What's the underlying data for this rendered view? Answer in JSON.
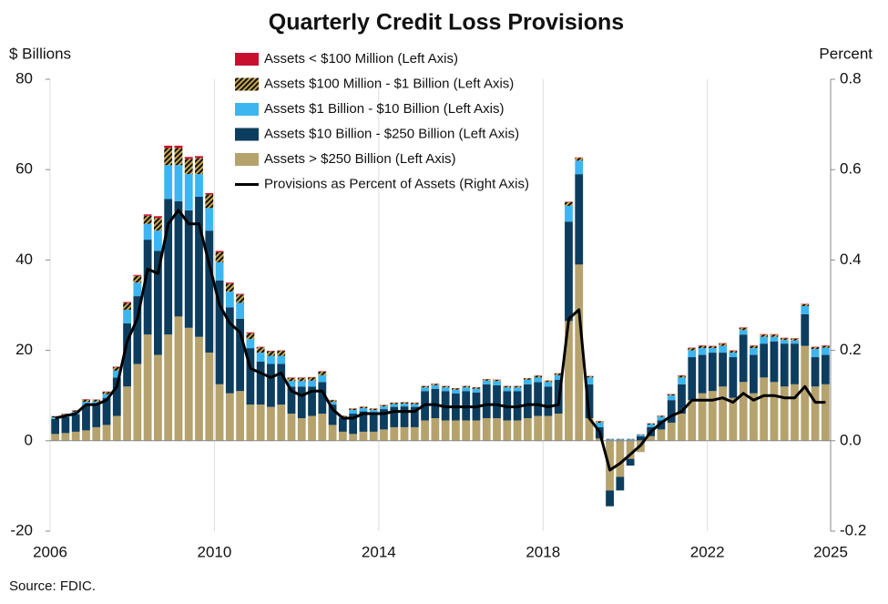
{
  "chart_data": {
    "type": "stacked-bar-line",
    "title": "Quarterly Credit Loss Provisions",
    "y_label": "$ Billions",
    "y2_label": "Percent",
    "source": "Source: FDIC.",
    "xlim": [
      2006,
      2025
    ],
    "xticks": [
      2006,
      2010,
      2014,
      2018,
      2022,
      2025
    ],
    "ylim": [
      -20,
      80
    ],
    "yticks": [
      -20,
      0,
      20,
      40,
      60,
      80
    ],
    "y2lim": [
      -0.2,
      0.8
    ],
    "y2ticks": [
      -0.2,
      {
        "value": 0,
        "label": "0.0"
      },
      0.2,
      0.4,
      0.6,
      0.8
    ],
    "grid": true,
    "x": [
      2006,
      2006.25,
      2006.5,
      2006.75,
      2007,
      2007.25,
      2007.5,
      2007.75,
      2008,
      2008.25,
      2008.5,
      2008.75,
      2009,
      2009.25,
      2009.5,
      2009.75,
      2010,
      2010.25,
      2010.5,
      2010.75,
      2011,
      2011.25,
      2011.5,
      2011.75,
      2012,
      2012.25,
      2012.5,
      2012.75,
      2013,
      2013.25,
      2013.5,
      2013.75,
      2014,
      2014.25,
      2014.5,
      2014.75,
      2015,
      2015.25,
      2015.5,
      2015.75,
      2016,
      2016.25,
      2016.5,
      2016.75,
      2017,
      2017.25,
      2017.5,
      2017.75,
      2018,
      2018.25,
      2018.5,
      2018.75,
      2019,
      2019.25,
      2019.5,
      2019.75,
      2020,
      2020.25,
      2020.5,
      2020.75,
      2021,
      2021.25,
      2021.5,
      2021.75,
      2022,
      2022.25,
      2022.5,
      2022.75,
      2023,
      2023.25,
      2023.5,
      2023.75,
      2024,
      2024.25,
      2024.5,
      2024.75
    ],
    "series": [
      {
        "name": "Assets < $100 Million (Left Axis)",
        "color": "#c8102e",
        "fill": "solid",
        "values": [
          0.05,
          0.05,
          0.05,
          0.1,
          0.05,
          0.1,
          0.1,
          0.2,
          0.2,
          0.3,
          0.4,
          0.5,
          0.5,
          0.4,
          0.4,
          0.3,
          0.3,
          0.2,
          0.2,
          0.2,
          0.1,
          0.1,
          0.1,
          0.1,
          0.1,
          0.1,
          0.1,
          0.05,
          0.05,
          0.05,
          0.05,
          0.05,
          0.05,
          0.05,
          0.05,
          0.05,
          0.05,
          0.05,
          0.05,
          0.05,
          0.05,
          0.05,
          0.05,
          0.05,
          0.05,
          0.05,
          0.05,
          0.05,
          0.05,
          0.05,
          0.1,
          0.1,
          0.05,
          0.05,
          0.02,
          0.02,
          0.02,
          0.02,
          0.05,
          0.05,
          0.05,
          0.1,
          0.1,
          0.1,
          0.1,
          0.1,
          0.1,
          0.1,
          0.1,
          0.1,
          0.1,
          0.1,
          0.1,
          0.1,
          0.1,
          0.1
        ]
      },
      {
        "name": "Assets $100 Million - $1 Billion (Left Axis)",
        "color": "#c9a84c",
        "fill": "hatch",
        "values": [
          0.2,
          0.25,
          0.3,
          0.5,
          0.4,
          0.5,
          0.8,
          1.5,
          1.5,
          1.8,
          2.8,
          3.8,
          3.8,
          3.4,
          3.6,
          3,
          2.2,
          1.8,
          1.8,
          1.3,
          1.2,
          1,
          1.1,
          0.7,
          0.7,
          0.7,
          0.8,
          0.4,
          0.2,
          0.3,
          0.3,
          0.3,
          0.3,
          0.3,
          0.3,
          0.3,
          0.3,
          0.3,
          0.3,
          0.3,
          0.3,
          0.3,
          0.3,
          0.3,
          0.3,
          0.3,
          0.3,
          0.4,
          0.3,
          0.4,
          0.8,
          0.6,
          0.3,
          0.3,
          0.1,
          0.1,
          0.1,
          0.1,
          0.2,
          0.2,
          0.3,
          0.4,
          0.5,
          0.5,
          0.4,
          0.5,
          0.4,
          0.5,
          0.5,
          0.5,
          0.5,
          0.4,
          0.4,
          0.4,
          0.4,
          0.4
        ]
      },
      {
        "name": "Assets $1 Billion - $10 Billion (Left Axis)",
        "color": "#3db5f0",
        "fill": "solid",
        "values": [
          0.4,
          0.5,
          0.6,
          0.8,
          0.7,
          0.8,
          1.5,
          3,
          3,
          3.5,
          4.5,
          7.5,
          8,
          8,
          5,
          5,
          4,
          3.5,
          3.5,
          2,
          2,
          1.8,
          1.8,
          1.2,
          1.2,
          1.3,
          1.5,
          0.6,
          0.3,
          0.8,
          0.7,
          0.5,
          0.6,
          0.6,
          0.6,
          0.6,
          0.8,
          0.8,
          0.8,
          0.8,
          0.8,
          0.8,
          0.8,
          0.9,
          0.8,
          0.8,
          1,
          1,
          1,
          1,
          3.5,
          3,
          1.5,
          1,
          0.3,
          0.3,
          0.3,
          0.3,
          0.6,
          0.8,
          1,
          1.5,
          1.5,
          1.5,
          1,
          1.5,
          1,
          1,
          1.5,
          1.5,
          1,
          0.8,
          0.7,
          1.8,
          1.8,
          1.6
        ]
      },
      {
        "name": "Assets $10 Billion - $250 Billion (Left Axis)",
        "color": "#0d3d5e",
        "fill": "solid",
        "values": [
          3.3,
          3.5,
          3.8,
          5.5,
          5,
          6,
          8.5,
          14,
          15,
          21,
          23,
          30,
          25.5,
          26,
          31,
          27,
          23,
          19,
          16,
          12.5,
          9.5,
          9.5,
          9,
          6,
          7,
          6.5,
          7,
          4.5,
          3,
          4.5,
          4.5,
          4.3,
          4.5,
          4.5,
          4.6,
          4.5,
          6.5,
          6.5,
          6.5,
          6,
          6.5,
          6.2,
          7.5,
          7.3,
          6.5,
          6.5,
          7.5,
          7.5,
          6.5,
          7.5,
          22,
          20,
          7.5,
          2.5,
          -3.5,
          -3,
          -1.5,
          1,
          2,
          2,
          5,
          6.5,
          9.5,
          8.5,
          8.5,
          7.5,
          9,
          10.5,
          8.5,
          7.5,
          9,
          9.5,
          9,
          7,
          6.5,
          6.5
        ]
      },
      {
        "name": "Assets > $250 Billion (Left Axis)",
        "color": "#b5a26d",
        "fill": "solid",
        "values": [
          1.5,
          1.7,
          2,
          2.3,
          3,
          3.5,
          5.5,
          12,
          17,
          23.5,
          19,
          23.5,
          27.5,
          25,
          23,
          19.5,
          12.5,
          10.5,
          11,
          8,
          8,
          7.5,
          8,
          6,
          5,
          5.5,
          6,
          3.5,
          2,
          1.5,
          2,
          2,
          2.5,
          3,
          3,
          3,
          4.5,
          5,
          4.5,
          4.5,
          4.5,
          4.5,
          5,
          5,
          4.5,
          4.5,
          5,
          5.5,
          5.5,
          6,
          26.5,
          39,
          5,
          0.5,
          -11,
          -8,
          -4,
          -2.5,
          1,
          2.5,
          4,
          6,
          9,
          10.5,
          11,
          12,
          9.5,
          13,
          10.5,
          14,
          13,
          12,
          12.5,
          21,
          12,
          12.5
        ]
      },
      {
        "name": "Provisions as Percent of Assets (Right Axis)",
        "color": "#000000",
        "axis": "y2",
        "fill": "line",
        "values": [
          0.05,
          0.055,
          0.06,
          0.08,
          0.08,
          0.09,
          0.12,
          0.22,
          0.27,
          0.38,
          0.37,
          0.48,
          0.51,
          0.48,
          0.48,
          0.39,
          0.3,
          0.26,
          0.24,
          0.16,
          0.15,
          0.14,
          0.15,
          0.11,
          0.1,
          0.11,
          0.11,
          0.07,
          0.05,
          0.05,
          0.06,
          0.06,
          0.06,
          0.065,
          0.065,
          0.065,
          0.08,
          0.08,
          0.075,
          0.075,
          0.075,
          0.075,
          0.08,
          0.08,
          0.075,
          0.075,
          0.08,
          0.08,
          0.075,
          0.08,
          0.27,
          0.29,
          0.05,
          0.02,
          -0.065,
          -0.05,
          -0.03,
          -0.01,
          0.02,
          0.04,
          0.055,
          0.065,
          0.09,
          0.09,
          0.09,
          0.095,
          0.085,
          0.105,
          0.09,
          0.1,
          0.1,
          0.095,
          0.095,
          0.12,
          0.085,
          0.085
        ]
      }
    ]
  }
}
